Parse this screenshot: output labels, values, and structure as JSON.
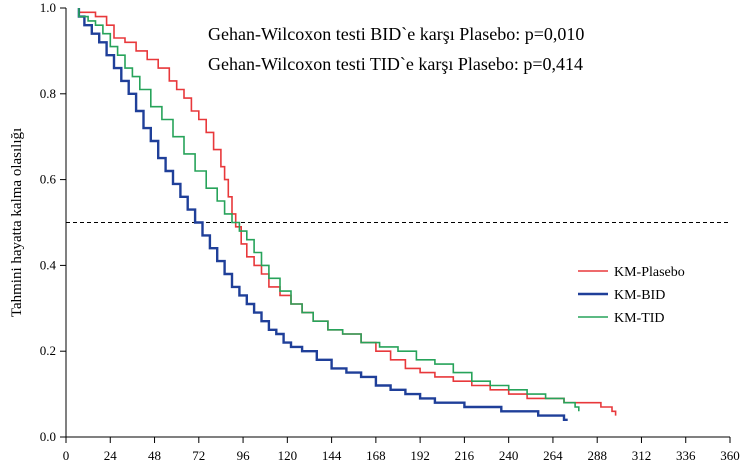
{
  "chart_data": {
    "type": "line",
    "title": "",
    "xlabel": "",
    "ylabel": "Tahmini hayatta kalma olasılığı",
    "xlim": [
      0,
      360
    ],
    "ylim": [
      0.0,
      1.0
    ],
    "x_ticks": [
      0,
      24,
      48,
      72,
      96,
      120,
      144,
      168,
      192,
      216,
      240,
      264,
      288,
      312,
      336,
      360
    ],
    "y_ticks": [
      0.0,
      0.2,
      0.4,
      0.6,
      0.8,
      1.0
    ],
    "y_tick_labels": [
      "0.0",
      "0.2",
      "0.4",
      "0.6",
      "0.8",
      "1.0"
    ],
    "reference_line": {
      "y": 0.5,
      "style": "dashed"
    },
    "legend_position": "right",
    "annotations": [
      "Gehan-Wilcoxon testi BID`e karşı Plasebo: p=0,010",
      "Gehan-Wilcoxon testi TID`e karşı Plasebo: p=0,414"
    ],
    "series": [
      {
        "name": "KM-Plasebo",
        "color": "#e8383b",
        "x": [
          7,
          12,
          16,
          22,
          26,
          32,
          38,
          44,
          50,
          56,
          60,
          64,
          68,
          72,
          76,
          80,
          84,
          86,
          88,
          90,
          92,
          95,
          98,
          102,
          106,
          110,
          116,
          122,
          128,
          134,
          142,
          150,
          160,
          168,
          176,
          184,
          192,
          200,
          210,
          220,
          230,
          240,
          250,
          260,
          270,
          280,
          290,
          296,
          298
        ],
        "y": [
          0.99,
          0.99,
          0.98,
          0.96,
          0.93,
          0.92,
          0.9,
          0.88,
          0.86,
          0.83,
          0.81,
          0.79,
          0.76,
          0.74,
          0.71,
          0.67,
          0.63,
          0.6,
          0.56,
          0.52,
          0.49,
          0.45,
          0.42,
          0.4,
          0.38,
          0.35,
          0.33,
          0.31,
          0.29,
          0.27,
          0.25,
          0.24,
          0.22,
          0.2,
          0.18,
          0.16,
          0.15,
          0.14,
          0.13,
          0.12,
          0.11,
          0.1,
          0.09,
          0.09,
          0.08,
          0.08,
          0.07,
          0.06,
          0.05
        ]
      },
      {
        "name": "KM-BID",
        "color": "#1f3f99",
        "x": [
          7,
          10,
          14,
          18,
          22,
          26,
          30,
          34,
          38,
          42,
          46,
          50,
          54,
          58,
          62,
          66,
          70,
          74,
          78,
          82,
          86,
          90,
          94,
          98,
          102,
          106,
          110,
          114,
          118,
          122,
          128,
          136,
          144,
          152,
          160,
          168,
          176,
          184,
          192,
          200,
          208,
          216,
          226,
          236,
          246,
          256,
          266,
          270,
          272
        ],
        "y": [
          0.98,
          0.96,
          0.94,
          0.92,
          0.89,
          0.86,
          0.83,
          0.8,
          0.76,
          0.72,
          0.69,
          0.65,
          0.62,
          0.59,
          0.56,
          0.53,
          0.5,
          0.47,
          0.44,
          0.41,
          0.38,
          0.35,
          0.33,
          0.31,
          0.29,
          0.27,
          0.25,
          0.24,
          0.22,
          0.21,
          0.2,
          0.18,
          0.16,
          0.15,
          0.14,
          0.12,
          0.11,
          0.1,
          0.09,
          0.08,
          0.08,
          0.07,
          0.07,
          0.06,
          0.06,
          0.05,
          0.05,
          0.04,
          0.04
        ]
      },
      {
        "name": "KM-TID",
        "color": "#27a35a",
        "x": [
          7,
          12,
          16,
          20,
          24,
          28,
          32,
          36,
          40,
          46,
          52,
          58,
          64,
          70,
          76,
          82,
          86,
          90,
          94,
          98,
          102,
          106,
          110,
          116,
          122,
          128,
          134,
          142,
          150,
          160,
          170,
          180,
          190,
          200,
          210,
          220,
          230,
          240,
          250,
          260,
          270,
          276,
          278
        ],
        "y": [
          0.98,
          0.97,
          0.96,
          0.94,
          0.91,
          0.89,
          0.86,
          0.84,
          0.81,
          0.77,
          0.74,
          0.7,
          0.66,
          0.62,
          0.58,
          0.55,
          0.52,
          0.5,
          0.48,
          0.46,
          0.43,
          0.4,
          0.37,
          0.34,
          0.31,
          0.29,
          0.27,
          0.25,
          0.24,
          0.22,
          0.21,
          0.2,
          0.18,
          0.17,
          0.15,
          0.13,
          0.12,
          0.11,
          0.1,
          0.09,
          0.08,
          0.07,
          0.06
        ]
      }
    ]
  }
}
